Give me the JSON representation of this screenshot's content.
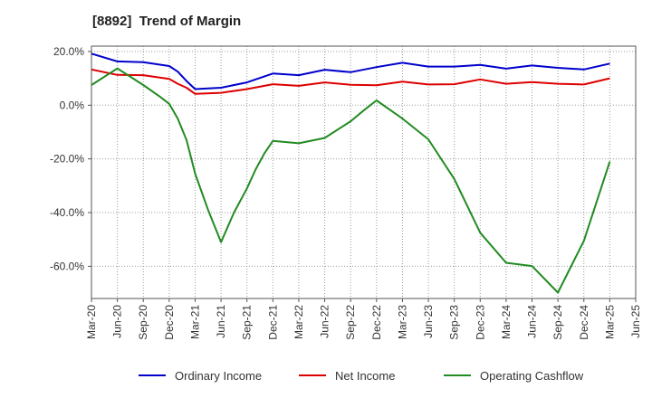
{
  "chart_data": {
    "type": "line",
    "title": "[8892]  Trend of Margin",
    "xlabel": "",
    "ylabel": "",
    "ylim": [
      -72,
      22
    ],
    "y_ticks": [
      20,
      0,
      -20,
      -40,
      -60
    ],
    "y_tick_labels": [
      "20.0%",
      "0.0%",
      "-20.0%",
      "-40.0%",
      "-60.0%"
    ],
    "x_tick_labels": [
      "Mar-20",
      "Jun-20",
      "Sep-20",
      "Dec-20",
      "Mar-21",
      "Jun-21",
      "Sep-21",
      "Dec-21",
      "Mar-22",
      "Jun-22",
      "Sep-22",
      "Dec-22",
      "Mar-23",
      "Jun-23",
      "Sep-23",
      "Dec-23",
      "Mar-24",
      "Jun-24",
      "Sep-24",
      "Dec-24",
      "Mar-25",
      "Jun-25"
    ],
    "grid": true,
    "legend_position": "bottom",
    "series": [
      {
        "name": "Ordinary Income",
        "color": "#0000cc",
        "points": [
          [
            0,
            19.2
          ],
          [
            1,
            16.3
          ],
          [
            2,
            16.0
          ],
          [
            3,
            14.6
          ],
          [
            3.33,
            12.5
          ],
          [
            3.67,
            9.0
          ],
          [
            4,
            6.0
          ],
          [
            5,
            6.5
          ],
          [
            6,
            8.5
          ],
          [
            7,
            11.8
          ],
          [
            8,
            11.2
          ],
          [
            9,
            13.2
          ],
          [
            10,
            12.3
          ],
          [
            11,
            14.2
          ],
          [
            12,
            15.8
          ],
          [
            13,
            14.4
          ],
          [
            14,
            14.4
          ],
          [
            15,
            15.0
          ],
          [
            16,
            13.6
          ],
          [
            17,
            14.8
          ],
          [
            18,
            13.9
          ],
          [
            19,
            13.3
          ],
          [
            20,
            15.5
          ]
        ]
      },
      {
        "name": "Net Income",
        "color": "#dd0000",
        "points": [
          [
            0,
            13.3
          ],
          [
            1,
            11.3
          ],
          [
            2,
            11.2
          ],
          [
            3,
            9.8
          ],
          [
            3.33,
            8.0
          ],
          [
            3.67,
            6.5
          ],
          [
            4,
            4.2
          ],
          [
            5,
            4.6
          ],
          [
            6,
            6.0
          ],
          [
            7,
            7.8
          ],
          [
            8,
            7.2
          ],
          [
            9,
            8.5
          ],
          [
            10,
            7.6
          ],
          [
            11,
            7.4
          ],
          [
            12,
            8.8
          ],
          [
            13,
            7.7
          ],
          [
            14,
            7.8
          ],
          [
            15,
            9.6
          ],
          [
            16,
            8.0
          ],
          [
            17,
            8.6
          ],
          [
            18,
            8.0
          ],
          [
            19,
            7.7
          ],
          [
            20,
            10.0
          ]
        ]
      },
      {
        "name": "Operating Cashflow",
        "color": "#228b22",
        "points": [
          [
            0,
            7.5
          ],
          [
            1,
            13.7
          ],
          [
            2,
            7.5
          ],
          [
            2.67,
            3.0
          ],
          [
            3,
            0.5
          ],
          [
            3.33,
            -5.0
          ],
          [
            3.67,
            -13.0
          ],
          [
            4,
            -25.5
          ],
          [
            4.5,
            -39.0
          ],
          [
            5,
            -51.0
          ],
          [
            5.5,
            -40.0
          ],
          [
            6,
            -31.0
          ],
          [
            6.33,
            -24.0
          ],
          [
            6.67,
            -18.0
          ],
          [
            7,
            -13.3
          ],
          [
            8,
            -14.2
          ],
          [
            9,
            -12.2
          ],
          [
            10,
            -6.0
          ],
          [
            10.5,
            -2.0
          ],
          [
            11,
            1.8
          ],
          [
            12,
            -5.0
          ],
          [
            13,
            -12.7
          ],
          [
            14,
            -27.5
          ],
          [
            15,
            -47.5
          ],
          [
            16,
            -58.7
          ],
          [
            17,
            -59.9
          ],
          [
            18,
            -69.8
          ],
          [
            19,
            -50.5
          ],
          [
            20,
            -21.0
          ]
        ]
      }
    ]
  }
}
